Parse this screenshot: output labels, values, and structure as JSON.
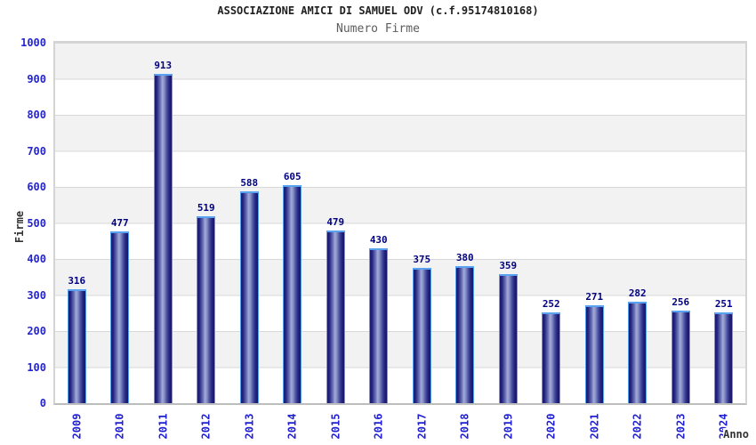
{
  "chart_data": {
    "type": "bar",
    "title": "ASSOCIAZIONE AMICI DI SAMUEL ODV (c.f.95174810168)",
    "subtitle": "Numero Firme",
    "xlabel": "Anno",
    "ylabel": "Firme",
    "categories": [
      "2009",
      "2010",
      "2011",
      "2012",
      "2013",
      "2014",
      "2015",
      "2016",
      "2017",
      "2018",
      "2019",
      "2020",
      "2021",
      "2022",
      "2023",
      "2024"
    ],
    "values": [
      316,
      477,
      913,
      519,
      588,
      605,
      479,
      430,
      375,
      380,
      359,
      252,
      271,
      282,
      256,
      251
    ],
    "ylim": [
      0,
      1000
    ],
    "ytick_step": 100,
    "yticks": [
      0,
      100,
      200,
      300,
      400,
      500,
      600,
      700,
      800,
      900,
      1000
    ],
    "grid": "horizontal-bands-every-100",
    "legend_position": "none",
    "colors": {
      "axis_text_blue": "#2525cd",
      "value_label_navy": "#000080",
      "bar_dark": "#1a1a70",
      "bar_highlight": "#a3abd9",
      "bar_cap_light_blue": "#58a2f2",
      "band_gray": "#f2f2f2",
      "band_white": "#ffffff",
      "gridline": "#d8d8d8",
      "plot_border": "#d4d4d4",
      "title_color": "#1f1f1f",
      "subtitle_color": "#5d5d5d",
      "axis_title_color": "#333333"
    }
  }
}
